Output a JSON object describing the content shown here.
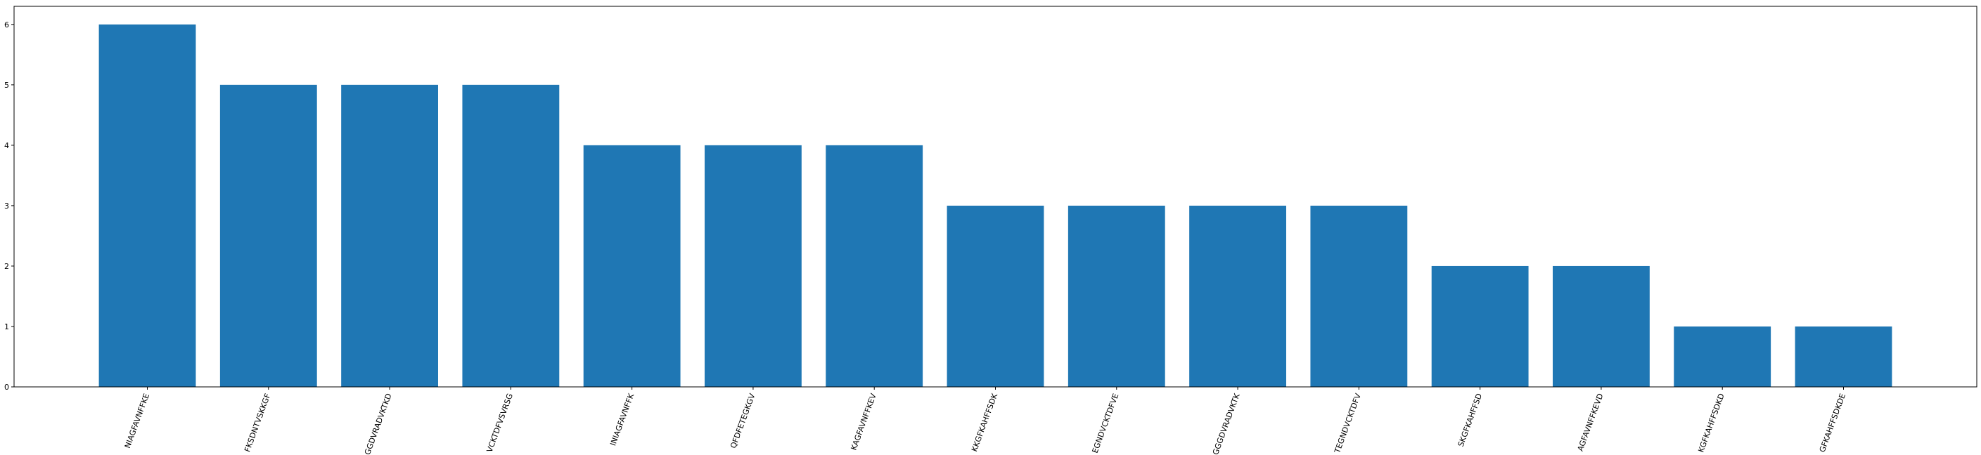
{
  "chart_data": {
    "type": "bar",
    "categories": [
      "NIAGFAVNFFKE",
      "FKSDNTVSKKGF",
      "GGDVRADVKTKD",
      "VCKTDFVSVRSG",
      "INIAGFAVNFFK",
      "QFDFETEGKGV",
      "KAGFAVNFFKEV",
      "KKGFKAHFFSDK",
      "EGNDVCKTDFVE",
      "GGGDVRADVKTK",
      "TEGNDVCKTDFV",
      "SKGFKAHFFSD",
      "AGFAVNFFKEVD",
      "KGFKAHFFSDKD",
      "GFKAHFFSDKDE"
    ],
    "values": [
      6,
      5,
      5,
      5,
      4,
      4,
      4,
      3,
      3,
      3,
      3,
      2,
      2,
      1,
      1
    ],
    "ylim": [
      0,
      6.3
    ],
    "yticks": [
      0,
      1,
      2,
      3,
      4,
      5,
      6
    ],
    "bar_color": "#1f77b4",
    "grid": false,
    "title": "",
    "xlabel": "",
    "ylabel": ""
  }
}
